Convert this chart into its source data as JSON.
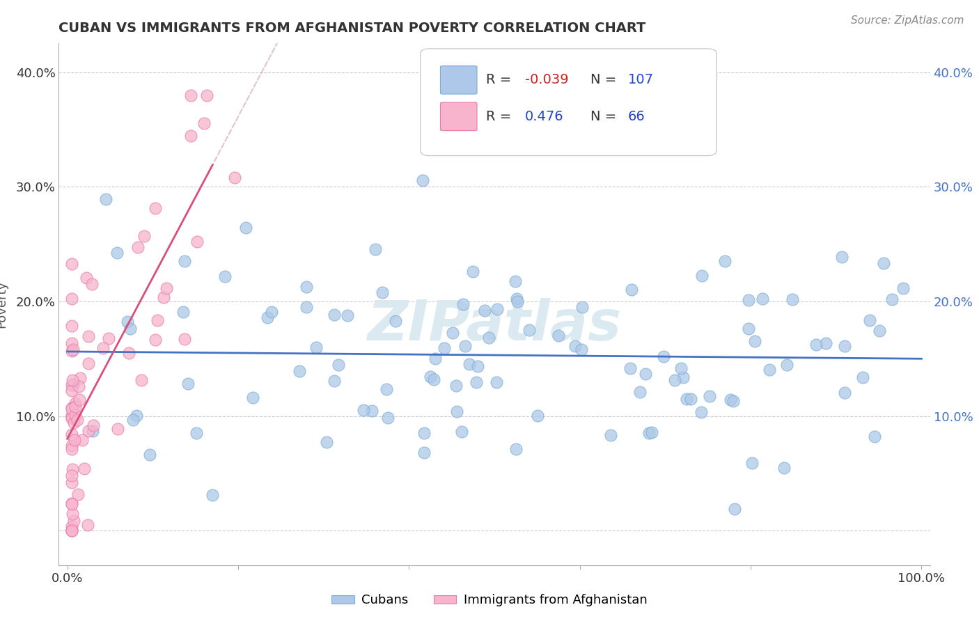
{
  "title": "CUBAN VS IMMIGRANTS FROM AFGHANISTAN POVERTY CORRELATION CHART",
  "source": "Source: ZipAtlas.com",
  "ylabel": "Poverty",
  "y_ticks": [
    0.0,
    0.1,
    0.2,
    0.3,
    0.4
  ],
  "y_tick_labels_left": [
    "",
    "10.0%",
    "20.0%",
    "30.0%",
    "40.0%"
  ],
  "y_tick_labels_right": [
    "",
    "10.0%",
    "20.0%",
    "30.0%",
    "40.0%"
  ],
  "xlim": [
    -0.01,
    1.01
  ],
  "ylim": [
    -0.03,
    0.425
  ],
  "cubans_R": -0.039,
  "cubans_N": 107,
  "afghanistan_R": 0.476,
  "afghanistan_N": 66,
  "cubans_color": "#adc8e8",
  "cubans_edge_color": "#7aafd4",
  "afghanistan_color": "#f8b4cc",
  "afghanistan_edge_color": "#e87aaa",
  "cubans_line_color": "#4472c4",
  "afghanistan_line_color": "#d94f7a",
  "afghanistan_dash_color": "#c8a0a8",
  "watermark_text": "ZIPatlas",
  "legend_blue_label": "Cubans",
  "legend_pink_label": "Immigrants from Afghanistan",
  "legend_r_color": "#d44",
  "legend_n_color": "#22a",
  "title_color": "#333333",
  "source_color": "#888888",
  "right_tick_color": "#4472c4"
}
